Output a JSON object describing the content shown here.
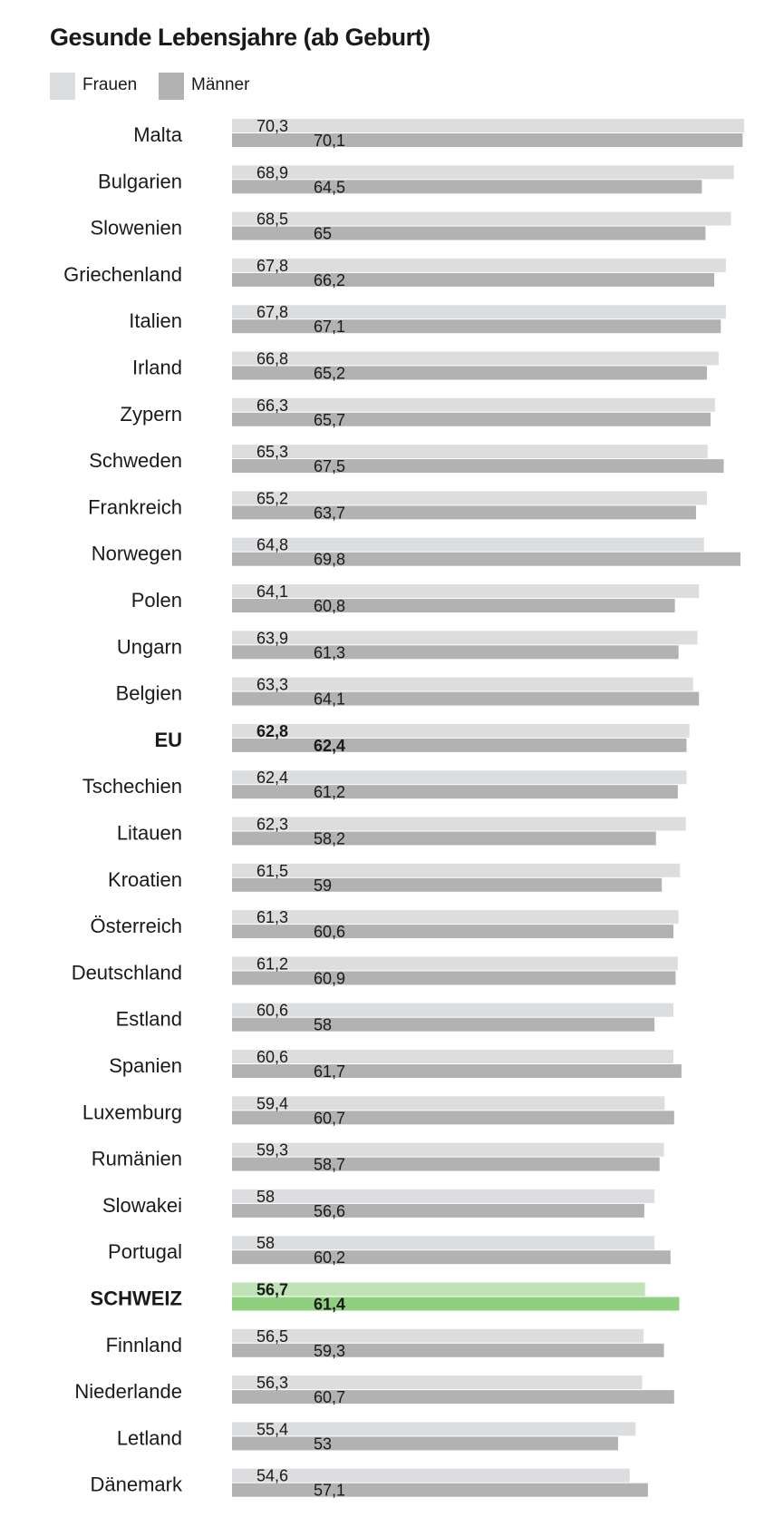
{
  "chart_data": {
    "type": "bar",
    "orientation": "horizontal",
    "title": "Gesunde Lebensjahre (ab Geburt)",
    "categories": [
      "Malta",
      "Bulgarien",
      "Slowenien",
      "Griechenland",
      "Italien",
      "Irland",
      "Zypern",
      "Schweden",
      "Frankreich",
      "Norwegen",
      "Polen",
      "Ungarn",
      "Belgien",
      "EU",
      "Tschechien",
      "Litauen",
      "Kroatien",
      "Österreich",
      "Deutschland",
      "Estland",
      "Spanien",
      "Luxemburg",
      "Rumänien",
      "Slowakei",
      "Portugal",
      "SCHWEIZ",
      "Finnland",
      "Niederlande",
      "Letland",
      "Dänemark"
    ],
    "series": [
      {
        "name": "Frauen",
        "color": "#dcdddf",
        "values": [
          70.3,
          68.9,
          68.5,
          67.8,
          67.8,
          66.8,
          66.3,
          65.3,
          65.2,
          64.8,
          64.1,
          63.9,
          63.3,
          62.8,
          62.4,
          62.3,
          61.5,
          61.3,
          61.2,
          60.6,
          60.6,
          59.4,
          59.3,
          58,
          58,
          56.7,
          56.5,
          56.3,
          55.4,
          54.6
        ],
        "labels": [
          "70,3",
          "68,9",
          "68,5",
          "67,8",
          "67,8",
          "66,8",
          "66,3",
          "65,3",
          "65,2",
          "64,8",
          "64,1",
          "63,9",
          "63,3",
          "62,8",
          "62,4",
          "62,3",
          "61,5",
          "61,3",
          "61,2",
          "60,6",
          "60,6",
          "59,4",
          "59,3",
          "58",
          "58",
          "56,7",
          "56,5",
          "56,3",
          "55,4",
          "54,6"
        ]
      },
      {
        "name": "Männer",
        "color": "#b2b2b2",
        "values": [
          70.1,
          64.5,
          65,
          66.2,
          67.1,
          65.2,
          65.7,
          67.5,
          63.7,
          69.8,
          60.8,
          61.3,
          64.1,
          62.4,
          61.2,
          58.2,
          59,
          60.6,
          60.9,
          58,
          61.7,
          60.7,
          58.7,
          56.6,
          60.2,
          61.4,
          59.3,
          60.7,
          53,
          57.1
        ],
        "labels": [
          "70,1",
          "64,5",
          "65",
          "66,2",
          "67,1",
          "65,2",
          "65,7",
          "67,5",
          "63,7",
          "69,8",
          "60,8",
          "61,3",
          "64,1",
          "62,4",
          "61,2",
          "58,2",
          "59",
          "60,6",
          "60,9",
          "58",
          "61,7",
          "60,7",
          "58,7",
          "56,6",
          "60,2",
          "61,4",
          "59,3",
          "60,7",
          "53",
          "57,1"
        ]
      }
    ],
    "highlight": {
      "EU": {
        "style": "bold"
      },
      "SCHWEIZ": {
        "style": "bold",
        "label_color": "#3e9b2f",
        "frauen_color": "#bfe3b4",
        "maenner_color": "#8fd080"
      }
    },
    "xlim": [
      0,
      70.3
    ],
    "axis_visible": false,
    "grid": false,
    "legend_position": "top-left"
  }
}
